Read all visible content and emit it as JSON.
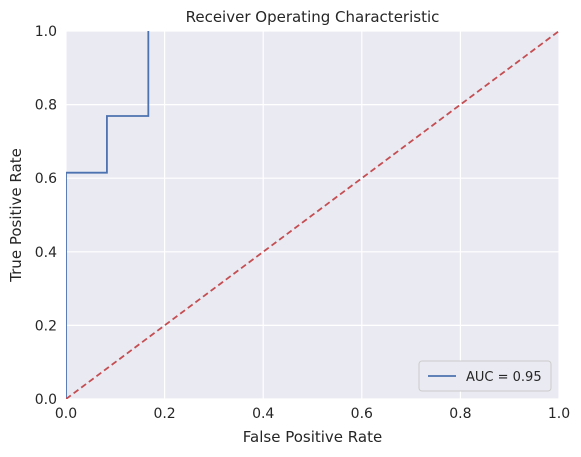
{
  "chart_data": {
    "type": "line",
    "title": "Receiver Operating Characteristic",
    "xlabel": "False Positive Rate",
    "ylabel": "True Positive Rate",
    "xlim": [
      0,
      1
    ],
    "ylim": [
      0,
      1
    ],
    "xticks": [
      "0.0",
      "0.2",
      "0.4",
      "0.6",
      "0.8",
      "1.0"
    ],
    "yticks": [
      "0.0",
      "0.2",
      "0.4",
      "0.6",
      "0.8",
      "1.0"
    ],
    "grid": true,
    "legend_position": "lower-right",
    "series": [
      {
        "name": "AUC = 0.95",
        "color": "#4c72b0",
        "style": "solid",
        "x": [
          0.0,
          0.0,
          0.083,
          0.083,
          0.167,
          0.167
        ],
        "y": [
          0.0,
          0.615,
          0.615,
          0.769,
          0.769,
          1.0
        ]
      },
      {
        "color": "#c44e52",
        "style": "dashed",
        "x": [
          0,
          1
        ],
        "y": [
          0,
          1
        ]
      }
    ],
    "colors": {
      "plot_bg": "#eaeaf2",
      "grid": "#ffffff"
    }
  }
}
